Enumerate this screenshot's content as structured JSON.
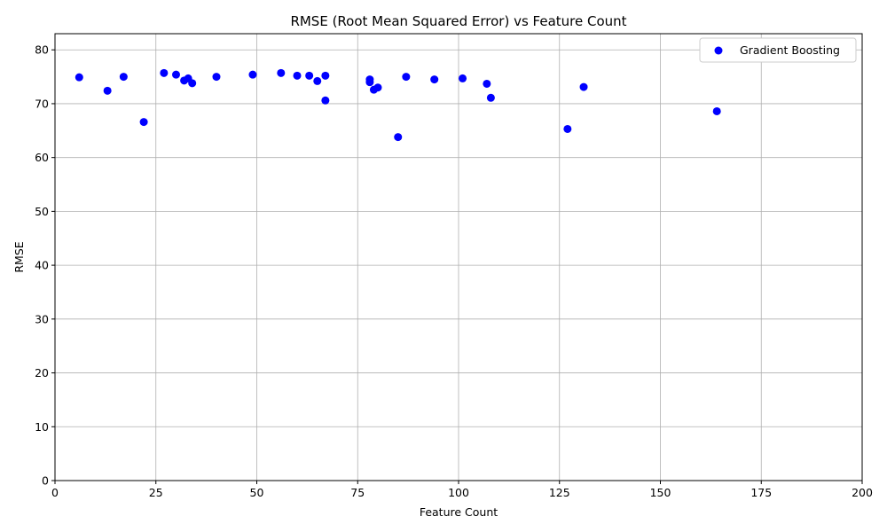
{
  "chart_data": {
    "type": "scatter",
    "title": "RMSE (Root Mean Squared Error) vs Feature Count",
    "xlabel": "Feature Count",
    "ylabel": "RMSE",
    "xlim": [
      0,
      200
    ],
    "ylim": [
      0,
      83
    ],
    "xticks": [
      0,
      25,
      50,
      75,
      100,
      125,
      150,
      175,
      200
    ],
    "yticks": [
      0,
      10,
      20,
      30,
      40,
      50,
      60,
      70,
      80
    ],
    "grid": true,
    "legend_position": "top-right",
    "series": [
      {
        "name": "Gradient Boosting",
        "color": "#0000ff",
        "points": [
          {
            "x": 6,
            "y": 74.9
          },
          {
            "x": 13,
            "y": 72.4
          },
          {
            "x": 17,
            "y": 75.0
          },
          {
            "x": 22,
            "y": 66.6
          },
          {
            "x": 27,
            "y": 75.7
          },
          {
            "x": 30,
            "y": 75.4
          },
          {
            "x": 32,
            "y": 74.3
          },
          {
            "x": 33,
            "y": 74.7
          },
          {
            "x": 34,
            "y": 73.8
          },
          {
            "x": 40,
            "y": 75.0
          },
          {
            "x": 49,
            "y": 75.4
          },
          {
            "x": 56,
            "y": 75.7
          },
          {
            "x": 60,
            "y": 75.2
          },
          {
            "x": 63,
            "y": 75.2
          },
          {
            "x": 65,
            "y": 74.2
          },
          {
            "x": 67,
            "y": 75.2
          },
          {
            "x": 67,
            "y": 70.6
          },
          {
            "x": 78,
            "y": 74.5
          },
          {
            "x": 78,
            "y": 74.0
          },
          {
            "x": 79,
            "y": 72.6
          },
          {
            "x": 80,
            "y": 73.0
          },
          {
            "x": 85,
            "y": 63.8
          },
          {
            "x": 87,
            "y": 75.0
          },
          {
            "x": 94,
            "y": 74.5
          },
          {
            "x": 101,
            "y": 74.7
          },
          {
            "x": 107,
            "y": 73.7
          },
          {
            "x": 108,
            "y": 71.1
          },
          {
            "x": 127,
            "y": 65.3
          },
          {
            "x": 131,
            "y": 73.1
          },
          {
            "x": 164,
            "y": 68.6
          }
        ]
      }
    ]
  }
}
